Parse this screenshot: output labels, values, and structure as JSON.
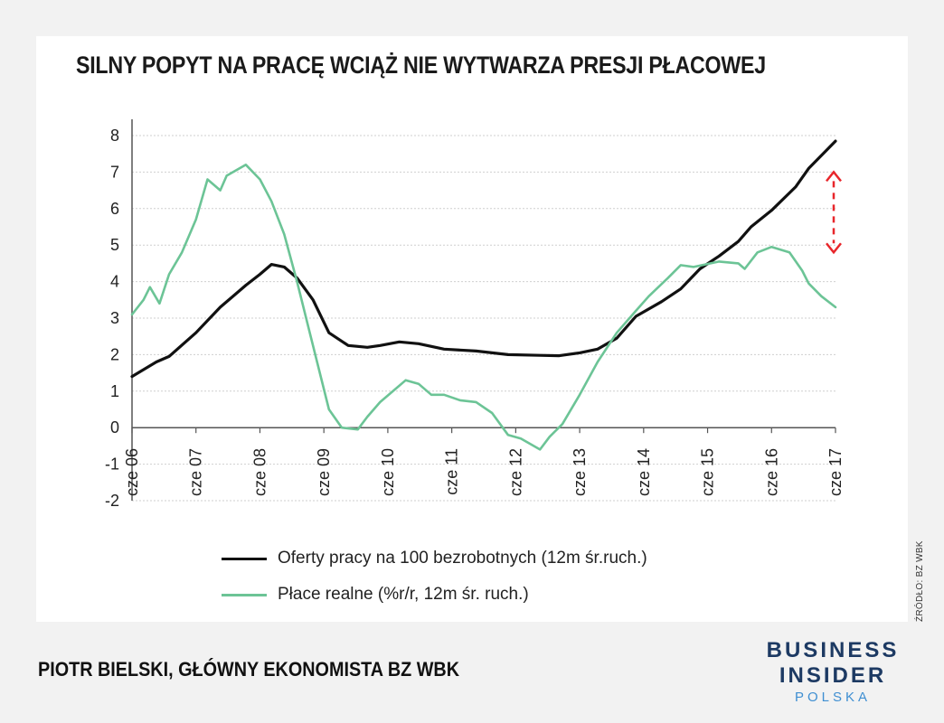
{
  "title": "SILNY POPYT NA PRACĘ WCIĄŻ NIE WYTWARZA PRESJI PŁACOWEJ",
  "author": "PIOTR BIELSKI, GŁÓWNY EKONOMISTA BZ WBK",
  "source": "ŹRÓDŁO: BZ WBK",
  "brand": {
    "line1": "BUSINESS",
    "line2": "INSIDER",
    "line3": "POLSKA"
  },
  "colors": {
    "black_series": "#111111",
    "green_series": "#6cc496",
    "arrow": "#e8262b",
    "brand": "#1d3a63",
    "brand_sub": "#3f8fd2"
  },
  "chart_data": {
    "type": "line",
    "title": "SILNY POPYT NA PRACĘ WCIĄŻ NIE WYTWARZA PRESJI PŁACOWEJ",
    "ylim": [
      -2,
      8
    ],
    "yticks": [
      "-2",
      "-1",
      "0",
      "1",
      "2",
      "3",
      "4",
      "5",
      "6",
      "7",
      "8"
    ],
    "xlim": [
      2006.42,
      2017.42
    ],
    "xticks": [
      "cze 06",
      "cze 07",
      "cze 08",
      "cze 09",
      "cze 10",
      "cze 11",
      "cze 12",
      "cze 13",
      "cze 14",
      "cze 15",
      "cze 16",
      "cze 17"
    ],
    "grid": "horizontal",
    "legend_position": "bottom",
    "series": [
      {
        "name": "Oferty pracy na 100 bezrobotnych (12m śr.ruch.)",
        "color": "#111111",
        "x": [
          2006.42,
          2006.8,
          2007.0,
          2007.42,
          2007.8,
          2008.2,
          2008.42,
          2008.6,
          2008.8,
          2009.0,
          2009.25,
          2009.5,
          2009.8,
          2010.1,
          2010.3,
          2010.6,
          2010.9,
          2011.3,
          2011.8,
          2012.3,
          2012.8,
          2013.1,
          2013.42,
          2013.7,
          2014.0,
          2014.3,
          2014.7,
          2015.0,
          2015.3,
          2015.6,
          2015.9,
          2016.1,
          2016.42,
          2016.8,
          2017.0,
          2017.42
        ],
        "values": [
          1.4,
          1.8,
          1.95,
          2.6,
          3.3,
          3.9,
          4.2,
          4.47,
          4.4,
          4.1,
          3.5,
          2.6,
          2.25,
          2.2,
          2.25,
          2.35,
          2.3,
          2.15,
          2.1,
          2.0,
          1.98,
          1.97,
          2.05,
          2.15,
          2.45,
          3.05,
          3.45,
          3.8,
          4.35,
          4.7,
          5.1,
          5.5,
          5.95,
          6.6,
          7.1,
          7.85
        ]
      },
      {
        "name": "Płace realne (%r/r, 12m śr. ruch.)",
        "color": "#6cc496",
        "x": [
          2006.42,
          2006.6,
          2006.7,
          2006.85,
          2007.0,
          2007.2,
          2007.42,
          2007.6,
          2007.8,
          2007.9,
          2008.2,
          2008.42,
          2008.6,
          2008.8,
          2009.0,
          2009.2,
          2009.5,
          2009.7,
          2009.95,
          2010.1,
          2010.3,
          2010.5,
          2010.7,
          2010.9,
          2011.1,
          2011.3,
          2011.55,
          2011.8,
          2012.05,
          2012.3,
          2012.5,
          2012.8,
          2012.95,
          2013.15,
          2013.42,
          2013.7,
          2014.0,
          2014.3,
          2014.5,
          2014.8,
          2015.0,
          2015.2,
          2015.6,
          2015.9,
          2016.0,
          2016.2,
          2016.42,
          2016.7,
          2016.9,
          2017.0,
          2017.2,
          2017.42
        ],
        "values": [
          3.1,
          3.5,
          3.85,
          3.4,
          4.2,
          4.8,
          5.7,
          6.8,
          6.5,
          6.9,
          7.2,
          6.8,
          6.2,
          5.3,
          4.0,
          2.6,
          0.5,
          0.0,
          -0.05,
          0.3,
          0.7,
          1.0,
          1.3,
          1.2,
          0.9,
          0.9,
          0.75,
          0.7,
          0.4,
          -0.2,
          -0.3,
          -0.6,
          -0.25,
          0.1,
          0.9,
          1.8,
          2.6,
          3.2,
          3.6,
          4.1,
          4.45,
          4.4,
          4.55,
          4.5,
          4.35,
          4.8,
          4.95,
          4.8,
          4.3,
          3.95,
          3.6,
          3.3
        ]
      }
    ],
    "annotation": {
      "type": "double-arrow",
      "style": "dashed",
      "color": "#e8262b",
      "x": 2017.42,
      "y_from": 7.0,
      "y_to": 4.8
    }
  }
}
